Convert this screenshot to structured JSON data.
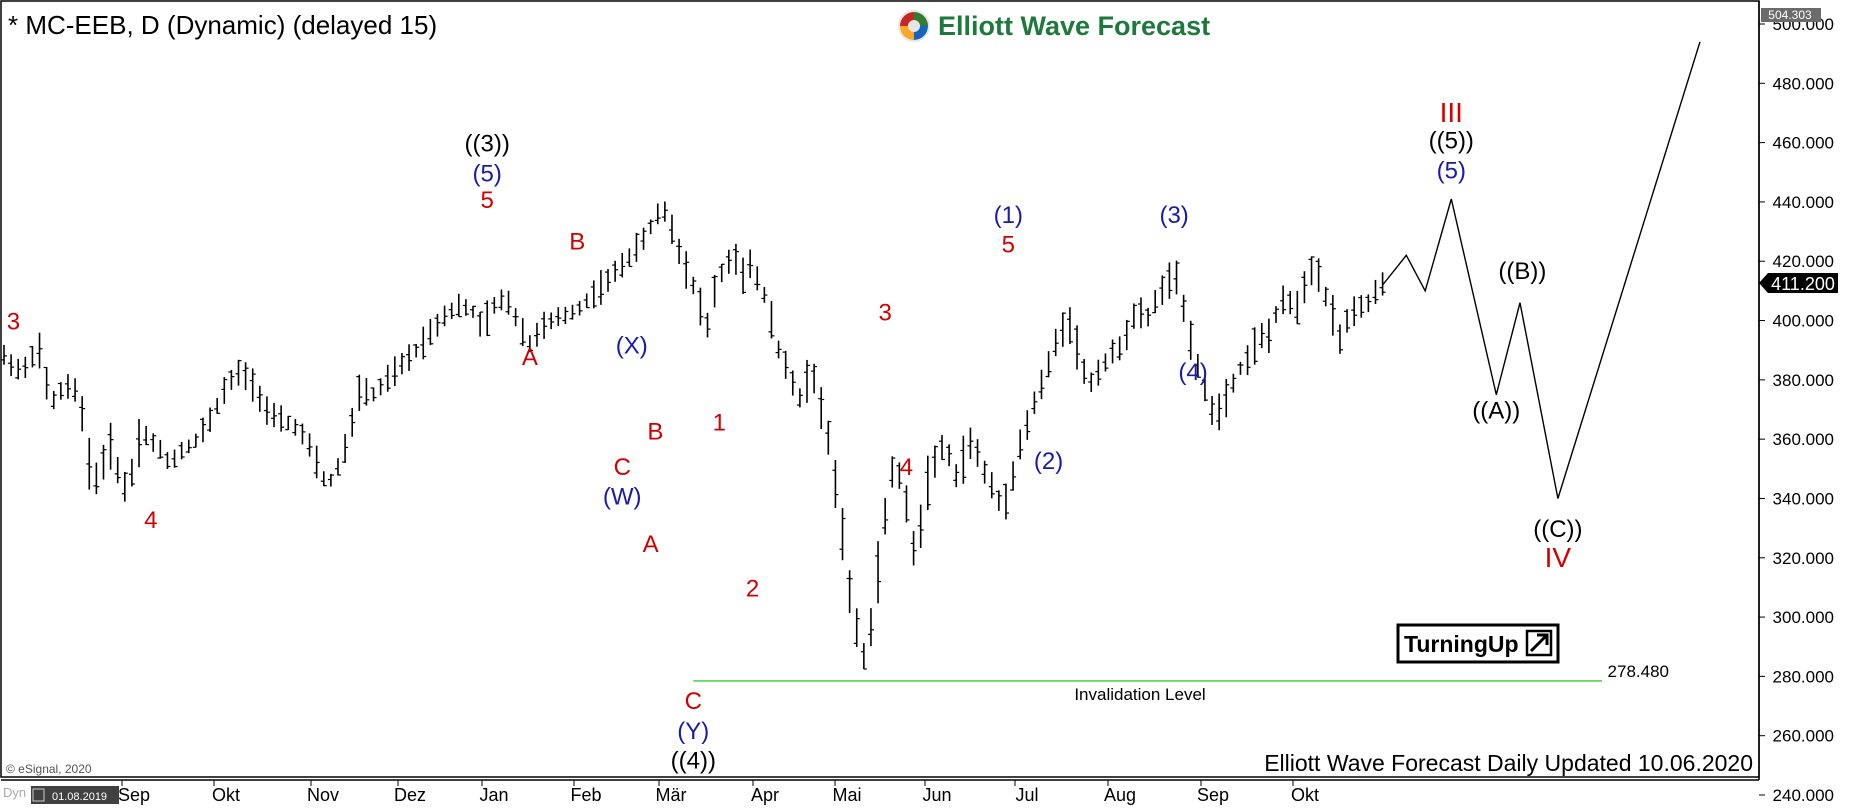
{
  "header": {
    "symbol_title": "* MC-EEB, D (Dynamic) (delayed 15)",
    "brand": "Elliott Wave Forecast",
    "corner_left": "Dyn",
    "date_box": "01.08.2019"
  },
  "footer": {
    "updated": "Elliott Wave Forecast Daily Updated 10.06.2020",
    "copyright": "© eSignal, 2020"
  },
  "badge": {
    "label": "TurningUp"
  },
  "colors": {
    "red": "#d40000",
    "blue": "#1a1aaa",
    "black": "#000000",
    "green": "#33cc33",
    "bars": "#000000"
  },
  "chart_data": {
    "type": "bar",
    "ylim": [
      240,
      500
    ],
    "y_ticks": [
      "500.000",
      "480.000",
      "460.000",
      "440.000",
      "420.000",
      "400.000",
      "380.000",
      "360.000",
      "340.000",
      "320.000",
      "300.000",
      "280.000",
      "260.000",
      "240.000"
    ],
    "x_months": [
      "Sep",
      "Okt",
      "Nov",
      "Dez",
      "Jan",
      "Feb",
      "Mär",
      "Apr",
      "Mai",
      "Jun",
      "Jul",
      "Aug",
      "Sep",
      "Okt"
    ],
    "axis_top_value": "504.303",
    "last_price": "411.200",
    "invalidation": {
      "value": 278.48,
      "value_label": "278.480",
      "label": "Invalidation Level"
    },
    "price_path": [
      [
        0,
        388
      ],
      [
        8,
        382
      ],
      [
        14,
        392
      ],
      [
        20,
        372
      ],
      [
        26,
        378
      ],
      [
        32,
        375
      ],
      [
        36,
        352
      ],
      [
        40,
        345
      ],
      [
        44,
        360
      ],
      [
        48,
        350
      ],
      [
        52,
        342
      ],
      [
        58,
        363
      ],
      [
        64,
        358
      ],
      [
        70,
        352
      ],
      [
        76,
        357
      ],
      [
        82,
        360
      ],
      [
        88,
        368
      ],
      [
        94,
        378
      ],
      [
        100,
        383
      ],
      [
        106,
        378
      ],
      [
        112,
        368
      ],
      [
        118,
        366
      ],
      [
        124,
        364
      ],
      [
        130,
        356
      ],
      [
        134,
        347
      ],
      [
        138,
        346
      ],
      [
        142,
        352
      ],
      [
        146,
        362
      ],
      [
        150,
        376
      ],
      [
        156,
        375
      ],
      [
        162,
        380
      ],
      [
        168,
        385
      ],
      [
        174,
        390
      ],
      [
        180,
        396
      ],
      [
        186,
        402
      ],
      [
        192,
        405
      ],
      [
        198,
        403
      ],
      [
        202,
        397
      ],
      [
        206,
        404
      ],
      [
        212,
        408
      ],
      [
        218,
        398
      ],
      [
        222,
        392
      ],
      [
        226,
        397
      ],
      [
        232,
        400
      ],
      [
        238,
        402
      ],
      [
        244,
        405
      ],
      [
        250,
        410
      ],
      [
        256,
        414
      ],
      [
        262,
        420
      ],
      [
        268,
        425
      ],
      [
        272,
        430
      ],
      [
        276,
        436
      ],
      [
        280,
        437
      ],
      [
        283,
        428
      ],
      [
        287,
        420
      ],
      [
        291,
        412
      ],
      [
        294,
        405
      ],
      [
        297,
        398
      ],
      [
        300,
        410
      ],
      [
        304,
        418
      ],
      [
        308,
        422
      ],
      [
        312,
        415
      ],
      [
        316,
        419
      ],
      [
        320,
        410
      ],
      [
        323,
        406
      ],
      [
        326,
        392
      ],
      [
        329,
        388
      ],
      [
        332,
        380
      ],
      [
        335,
        375
      ],
      [
        337,
        372
      ],
      [
        340,
        385
      ],
      [
        343,
        378
      ],
      [
        346,
        368
      ],
      [
        349,
        357
      ],
      [
        352,
        338
      ],
      [
        354,
        326
      ],
      [
        356,
        316
      ],
      [
        358,
        304
      ],
      [
        361,
        293
      ],
      [
        364,
        285
      ],
      [
        367,
        301
      ],
      [
        370,
        322
      ],
      [
        373,
        340
      ],
      [
        376,
        352
      ],
      [
        379,
        346
      ],
      [
        382,
        332
      ],
      [
        385,
        320
      ],
      [
        388,
        336
      ],
      [
        391,
        350
      ],
      [
        394,
        355
      ],
      [
        397,
        357
      ],
      [
        400,
        353
      ],
      [
        403,
        345
      ],
      [
        406,
        357
      ],
      [
        409,
        360
      ],
      [
        412,
        352
      ],
      [
        416,
        346
      ],
      [
        419,
        340
      ],
      [
        422,
        338
      ],
      [
        425,
        345
      ],
      [
        428,
        356
      ],
      [
        431,
        362
      ],
      [
        434,
        370
      ],
      [
        437,
        376
      ],
      [
        440,
        382
      ],
      [
        443,
        390
      ],
      [
        446,
        396
      ],
      [
        449,
        402
      ],
      [
        452,
        394
      ],
      [
        455,
        385
      ],
      [
        458,
        378
      ],
      [
        461,
        382
      ],
      [
        464,
        385
      ],
      [
        467,
        388
      ],
      [
        470,
        390
      ],
      [
        473,
        394
      ],
      [
        476,
        400
      ],
      [
        479,
        403
      ],
      [
        482,
        400
      ],
      [
        485,
        404
      ],
      [
        488,
        410
      ],
      [
        491,
        412
      ],
      [
        494,
        416
      ],
      [
        497,
        407
      ],
      [
        500,
        398
      ],
      [
        503,
        388
      ],
      [
        506,
        378
      ],
      [
        509,
        372
      ],
      [
        512,
        368
      ],
      [
        515,
        373
      ],
      [
        518,
        378
      ],
      [
        521,
        383
      ],
      [
        524,
        386
      ],
      [
        527,
        390
      ],
      [
        530,
        395
      ],
      [
        533,
        393
      ],
      [
        536,
        400
      ],
      [
        539,
        405
      ],
      [
        542,
        408
      ],
      [
        545,
        402
      ],
      [
        548,
        410
      ],
      [
        551,
        416
      ],
      [
        554,
        420
      ],
      [
        557,
        410
      ],
      [
        560,
        405
      ],
      [
        563,
        393
      ],
      [
        566,
        398
      ],
      [
        569,
        402
      ],
      [
        572,
        404
      ],
      [
        575,
        405
      ],
      [
        578,
        408
      ],
      [
        582,
        412
      ]
    ],
    "projection": [
      [
        582,
        412
      ],
      [
        592,
        422
      ],
      [
        600,
        410
      ],
      [
        611,
        441
      ],
      [
        630,
        375
      ],
      [
        640,
        406
      ],
      [
        656,
        340
      ],
      [
        716,
        494
      ]
    ],
    "labels": [
      {
        "text": "3",
        "color": "red",
        "x": 4,
        "y": 400
      },
      {
        "text": "4",
        "color": "red",
        "x": 62,
        "y": 333
      },
      {
        "text": "((3))",
        "color": "black",
        "x": 204,
        "y": 460
      },
      {
        "text": "(5)",
        "color": "blue",
        "x": 204,
        "y": 450
      },
      {
        "text": "5",
        "color": "red",
        "x": 204,
        "y": 441
      },
      {
        "text": "A",
        "color": "red",
        "x": 222,
        "y": 388
      },
      {
        "text": "B",
        "color": "red",
        "x": 242,
        "y": 427
      },
      {
        "text": "(X)",
        "color": "blue",
        "x": 265,
        "y": 392
      },
      {
        "text": "B",
        "color": "red",
        "x": 275,
        "y": 363
      },
      {
        "text": "C",
        "color": "red",
        "x": 261,
        "y": 351
      },
      {
        "text": "(W)",
        "color": "blue",
        "x": 261,
        "y": 341
      },
      {
        "text": "A",
        "color": "red",
        "x": 273,
        "y": 325
      },
      {
        "text": "C",
        "color": "red",
        "x": 291,
        "y": 272
      },
      {
        "text": "(Y)",
        "color": "blue",
        "x": 291,
        "y": 262
      },
      {
        "text": "((4))",
        "color": "black",
        "x": 291,
        "y": 252
      },
      {
        "text": "1",
        "color": "red",
        "x": 302,
        "y": 366
      },
      {
        "text": "2",
        "color": "red",
        "x": 316,
        "y": 310
      },
      {
        "text": "3",
        "color": "red",
        "x": 372,
        "y": 403
      },
      {
        "text": "4",
        "color": "red",
        "x": 381,
        "y": 351
      },
      {
        "text": "(1)",
        "color": "blue",
        "x": 424,
        "y": 436
      },
      {
        "text": "5",
        "color": "red",
        "x": 424,
        "y": 426
      },
      {
        "text": "(2)",
        "color": "blue",
        "x": 441,
        "y": 353
      },
      {
        "text": "(3)",
        "color": "blue",
        "x": 494,
        "y": 436
      },
      {
        "text": "(4)",
        "color": "blue",
        "x": 502,
        "y": 383
      },
      {
        "text": "III",
        "color": "red",
        "x": 611,
        "y": 470
      },
      {
        "text": "((5))",
        "color": "black",
        "x": 611,
        "y": 461
      },
      {
        "text": "(5)",
        "color": "blue",
        "x": 611,
        "y": 451
      },
      {
        "text": "((A))",
        "color": "black",
        "x": 630,
        "y": 370
      },
      {
        "text": "((B))",
        "color": "black",
        "x": 641,
        "y": 417
      },
      {
        "text": "((C))",
        "color": "black",
        "x": 656,
        "y": 330
      },
      {
        "text": "IV",
        "color": "red",
        "x": 656,
        "y": 320
      }
    ]
  }
}
